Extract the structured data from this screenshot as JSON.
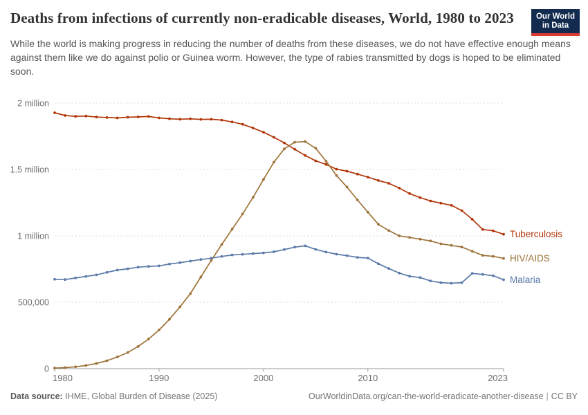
{
  "header": {
    "title": "Deaths from infections of currently non-eradicable diseases, World, 1980 to 2023",
    "subtitle": "While the world is making progress in reducing the number of deaths from these diseases, we do not have effective enough means against them like we do against polio or Guinea worm. However, the type of rabies transmitted by dogs is hoped to be eliminated soon.",
    "logo": {
      "line1": "Our World",
      "line2": "in Data",
      "bg_color": "#122b4e",
      "accent_color": "#dc3a31"
    }
  },
  "chart_data": {
    "type": "line",
    "title": "Deaths from infections of currently non-eradicable diseases",
    "xlabel": "",
    "ylabel": "",
    "xlim": [
      1980,
      2023
    ],
    "ylim": [
      0,
      2000000
    ],
    "grid": "horizontal-dashed",
    "legend_position": "right-of-line-ends",
    "x": [
      1980,
      1981,
      1982,
      1983,
      1984,
      1985,
      1986,
      1987,
      1988,
      1989,
      1990,
      1991,
      1992,
      1993,
      1994,
      1995,
      1996,
      1997,
      1998,
      1999,
      2000,
      2001,
      2002,
      2003,
      2004,
      2005,
      2006,
      2007,
      2008,
      2009,
      2010,
      2011,
      2012,
      2013,
      2014,
      2015,
      2016,
      2017,
      2018,
      2019,
      2020,
      2021,
      2022,
      2023
    ],
    "series": [
      {
        "name": "Tuberculosis",
        "color": "#b13507",
        "values": [
          1927000,
          1906000,
          1900000,
          1902000,
          1895000,
          1891000,
          1888000,
          1893000,
          1896000,
          1899000,
          1888000,
          1882000,
          1878000,
          1881000,
          1877000,
          1878000,
          1872000,
          1858000,
          1840000,
          1812000,
          1780000,
          1742000,
          1700000,
          1652000,
          1605000,
          1565000,
          1538000,
          1502000,
          1487000,
          1465000,
          1442000,
          1417000,
          1396000,
          1360000,
          1318000,
          1288000,
          1263000,
          1246000,
          1230000,
          1190000,
          1125000,
          1048000,
          1038000,
          1012000
        ]
      },
      {
        "name": "HIV/AIDS",
        "color": "#9d7339",
        "values": [
          4000,
          8000,
          14000,
          24000,
          39000,
          60000,
          88000,
          122000,
          167000,
          223000,
          291000,
          372000,
          465000,
          565000,
          690000,
          815000,
          935000,
          1050000,
          1165000,
          1290000,
          1425000,
          1555000,
          1655000,
          1705000,
          1710000,
          1660000,
          1562000,
          1454000,
          1367000,
          1271000,
          1178000,
          1087000,
          1040000,
          1000000,
          988000,
          975000,
          962000,
          940000,
          928000,
          916000,
          884000,
          853000,
          846000,
          830000
        ]
      },
      {
        "name": "Malaria",
        "color": "#5b7aa8",
        "values": [
          673000,
          671000,
          683000,
          695000,
          706000,
          725000,
          742000,
          752000,
          764000,
          770000,
          774000,
          788000,
          798000,
          810000,
          822000,
          832000,
          845000,
          856000,
          861000,
          866000,
          872000,
          880000,
          897000,
          915000,
          925000,
          898000,
          878000,
          862000,
          851000,
          838000,
          833000,
          790000,
          754000,
          720000,
          696000,
          686000,
          661000,
          648000,
          643000,
          648000,
          717000,
          710000,
          700000,
          670000
        ]
      }
    ],
    "yticks": [
      {
        "value": 0,
        "label": "0"
      },
      {
        "value": 500000,
        "label": "500,000"
      },
      {
        "value": 1000000,
        "label": "1 million"
      },
      {
        "value": 1500000,
        "label": "1.5 million"
      },
      {
        "value": 2000000,
        "label": "2 million"
      }
    ],
    "xticks": [
      {
        "value": 1980,
        "label": "1980"
      },
      {
        "value": 1990,
        "label": "1990"
      },
      {
        "value": 2000,
        "label": "2000"
      },
      {
        "value": 2010,
        "label": "2010"
      },
      {
        "value": 2023,
        "label": "2023"
      }
    ]
  },
  "footer": {
    "datasource_label": "Data source:",
    "datasource_value": " IHME, Global Burden of Disease (2025)",
    "link": "OurWorldinData.org/can-the-world-eradicate-another-disease",
    "separator": "|",
    "license": "CC BY"
  }
}
